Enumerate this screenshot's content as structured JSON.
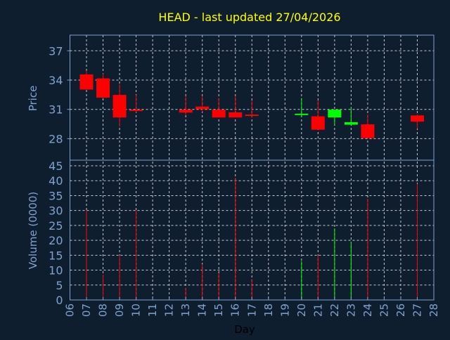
{
  "chart_data": {
    "type": "candlestick",
    "title": "HEAD - last updated 27/04/2026",
    "xlabel": "Day",
    "ylabel_price": "Price",
    "ylabel_volume": "Volume (0000)",
    "x_ticks": [
      "06",
      "07",
      "08",
      "09",
      "10",
      "11",
      "12",
      "13",
      "14",
      "15",
      "16",
      "17",
      "18",
      "19",
      "20",
      "21",
      "22",
      "23",
      "24",
      "25",
      "26",
      "27",
      "28"
    ],
    "price_ticks": [
      28,
      31,
      34,
      37
    ],
    "price_ylim": [
      25.8,
      38.6
    ],
    "volume_ticks": [
      0,
      5,
      10,
      15,
      20,
      25,
      30,
      35,
      40,
      45
    ],
    "volume_ylim": [
      0,
      45
    ],
    "grid": true,
    "colors": {
      "up": "#00ff00",
      "down": "#ff0000",
      "title": "#ffff00",
      "axis": "#7fa2cf",
      "background": "#0f1e2f"
    },
    "candles": [
      {
        "day": "07",
        "open": 34.58,
        "high": 34.96,
        "low": 33.03,
        "close": 33.03,
        "volume": 30
      },
      {
        "day": "08",
        "open": 34.17,
        "high": 34.67,
        "low": 32.2,
        "close": 32.2,
        "volume": 8.5
      },
      {
        "day": "09",
        "open": 32.48,
        "high": 33.59,
        "low": 29.25,
        "close": 30.17,
        "volume": 15
      },
      {
        "day": "10",
        "open": 30.97,
        "high": 32.48,
        "low": 30.67,
        "close": 30.84,
        "volume": 30
      },
      {
        "day": "13",
        "open": 30.97,
        "high": 32.37,
        "low": 30.44,
        "close": 30.67,
        "volume": 4
      },
      {
        "day": "14",
        "open": 31.29,
        "high": 32.37,
        "low": 30.74,
        "close": 31.02,
        "volume": 12
      },
      {
        "day": "15",
        "open": 30.97,
        "high": 32.16,
        "low": 30.17,
        "close": 30.17,
        "volume": 9
      },
      {
        "day": "16",
        "open": 30.7,
        "high": 32.37,
        "low": 30.17,
        "close": 30.17,
        "volume": 41
      },
      {
        "day": "17",
        "open": 30.47,
        "high": 31.9,
        "low": 30.17,
        "close": 30.35,
        "volume": 7
      },
      {
        "day": "20",
        "open": 30.48,
        "high": 32.16,
        "low": 30.21,
        "close": 30.56,
        "volume": 13
      },
      {
        "day": "21",
        "open": 30.29,
        "high": 31.92,
        "low": 28.92,
        "close": 28.92,
        "volume": 15
      },
      {
        "day": "22",
        "open": 30.17,
        "high": 30.97,
        "low": 29.43,
        "close": 30.97,
        "volume": 24
      },
      {
        "day": "23",
        "open": 29.43,
        "high": 31.23,
        "low": 29.43,
        "close": 29.69,
        "volume": 19.5
      },
      {
        "day": "24",
        "open": 29.47,
        "high": 30.47,
        "low": 28.06,
        "close": 28.06,
        "volume": 34
      },
      {
        "day": "27",
        "open": 30.38,
        "high": 30.47,
        "low": 29.02,
        "close": 29.75,
        "volume": 39
      }
    ]
  }
}
